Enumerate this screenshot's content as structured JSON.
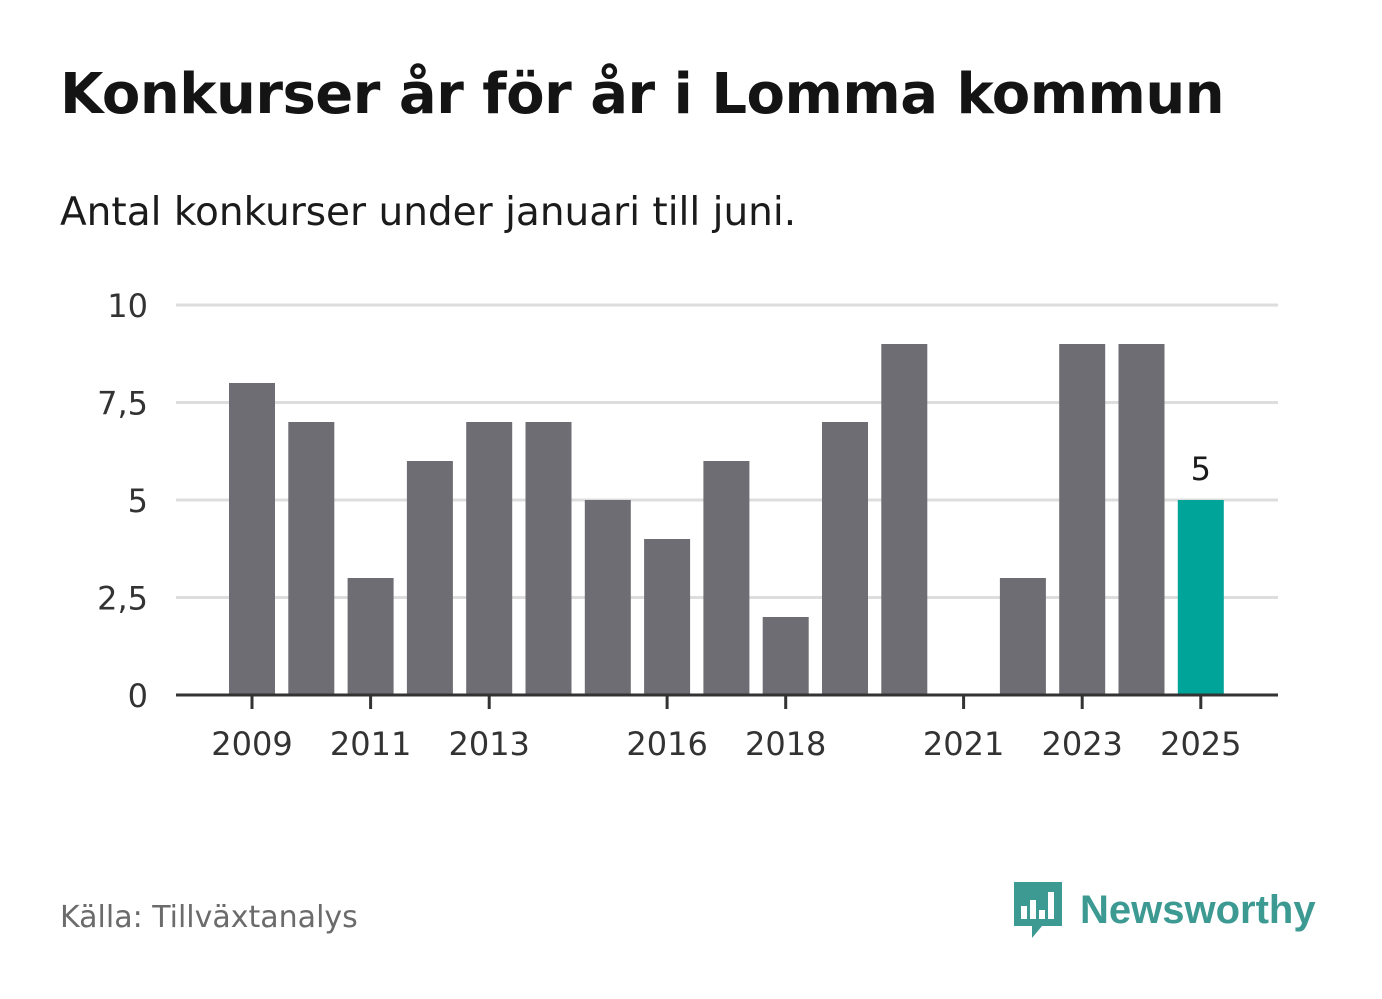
{
  "title": "Konkurser år för år i Lomma kommun",
  "subtitle": "Antal konkurser under januari till juni.",
  "source": "Källa: Tillväxtanalys",
  "brand": {
    "name": "Newsworthy",
    "color": "#3d9a92"
  },
  "colors": {
    "bar": "#6e6d73",
    "highlight": "#00a499",
    "grid": "#dddddd",
    "axis": "#333333"
  },
  "chart_data": {
    "type": "bar",
    "categories": [
      "2009",
      "2010",
      "2011",
      "2012",
      "2013",
      "2014",
      "2015",
      "2016",
      "2017",
      "2018",
      "2019",
      "2020",
      "2021",
      "2022",
      "2023",
      "2024",
      "2025"
    ],
    "values": [
      8,
      7,
      3,
      6,
      7,
      7,
      5,
      4,
      6,
      2,
      7,
      9,
      0,
      3,
      9,
      9,
      5
    ],
    "x_tick_labels": [
      "2009",
      "2011",
      "2013",
      "2016",
      "2018",
      "2021",
      "2023",
      "2025"
    ],
    "y_ticks": [
      "0",
      "2,5",
      "5",
      "7,5",
      "10"
    ],
    "y_tick_values": [
      0,
      2.5,
      5,
      7.5,
      10
    ],
    "ylim": [
      0,
      10
    ],
    "highlight": "2025",
    "data_labels": [
      {
        "category": "2025",
        "text": "5"
      }
    ],
    "grid": true,
    "xlabel": "",
    "ylabel": ""
  }
}
